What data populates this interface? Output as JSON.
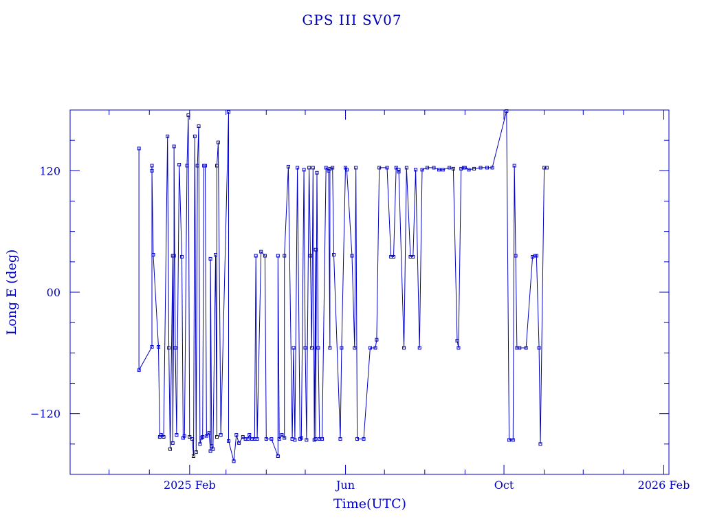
{
  "chart_data": {
    "type": "line",
    "title": "GPS III SV07",
    "xlabel": "Time(UTC)",
    "ylabel": "Long E (deg)",
    "xlim": [
      "2024-11-01",
      "2026-02-05"
    ],
    "ylim": [
      -180,
      180
    ],
    "y_ticks": [
      -120,
      0,
      120
    ],
    "y_tick_labels": [
      "−120",
      "00",
      "120"
    ],
    "x_ticks": [
      "2025-02-01",
      "2025-06-01",
      "2025-10-01",
      "2026-02-01"
    ],
    "x_tick_labels": [
      "2025 Feb",
      "Jun",
      "Oct",
      "2026 Feb"
    ],
    "grid": false,
    "color": "#0000c0",
    "series": [
      {
        "marker": "square",
        "points": [
          [
            "2024-12-24",
            142
          ],
          [
            "2024-12-24",
            -77
          ],
          [
            "2025-01-03",
            -54
          ],
          [
            "2025-01-03",
            125
          ],
          [
            "2025-01-03",
            120
          ],
          [
            "2025-01-04",
            37
          ],
          [
            "2025-01-08",
            -54
          ],
          [
            "2025-01-09",
            -143
          ],
          [
            "2025-01-10",
            -141
          ],
          [
            "2025-01-12",
            -143
          ],
          [
            "2025-01-15",
            154
          ],
          [
            "2025-01-16",
            -55
          ],
          [
            "2025-01-17",
            -155
          ],
          [
            "2025-01-19",
            36
          ],
          [
            "2025-01-19",
            -149
          ],
          [
            "2025-01-20",
            36
          ],
          [
            "2025-01-20",
            144
          ],
          [
            "2025-01-21",
            -55
          ],
          [
            "2025-01-22",
            -141
          ],
          [
            "2025-01-24",
            126
          ],
          [
            "2025-01-26",
            35
          ],
          [
            "2025-01-27",
            -144
          ],
          [
            "2025-01-28",
            -142
          ],
          [
            "2025-01-30",
            125
          ],
          [
            "2025-01-31",
            175
          ],
          [
            "2025-02-01",
            -143
          ],
          [
            "2025-02-03",
            -145
          ],
          [
            "2025-02-04",
            -162
          ],
          [
            "2025-02-05",
            154
          ],
          [
            "2025-02-06",
            -158
          ],
          [
            "2025-02-07",
            125
          ],
          [
            "2025-02-08",
            164
          ],
          [
            "2025-02-09",
            -150
          ],
          [
            "2025-02-10",
            -144
          ],
          [
            "2025-02-11",
            -143
          ],
          [
            "2025-02-12",
            125
          ],
          [
            "2025-02-13",
            125
          ],
          [
            "2025-02-14",
            -142
          ],
          [
            "2025-02-16",
            -139
          ],
          [
            "2025-02-17",
            -157
          ],
          [
            "2025-02-17",
            33
          ],
          [
            "2025-02-18",
            -152
          ],
          [
            "2025-02-19",
            -155
          ],
          [
            "2025-02-21",
            37
          ],
          [
            "2025-02-22",
            -143
          ],
          [
            "2025-02-22",
            125
          ],
          [
            "2025-02-23",
            148
          ],
          [
            "2025-02-25",
            -141
          ],
          [
            "2025-03-03",
            178
          ],
          [
            "2025-03-03",
            -147
          ],
          [
            "2025-03-07",
            -167
          ],
          [
            "2025-03-09",
            -141
          ],
          [
            "2025-03-11",
            -149
          ],
          [
            "2025-03-14",
            -143
          ],
          [
            "2025-03-16",
            -145
          ],
          [
            "2025-03-18",
            -145
          ],
          [
            "2025-03-19",
            -141
          ],
          [
            "2025-03-21",
            -145
          ],
          [
            "2025-03-23",
            -145
          ],
          [
            "2025-03-24",
            36
          ],
          [
            "2025-03-25",
            -145
          ],
          [
            "2025-03-28",
            40
          ],
          [
            "2025-03-31",
            36
          ],
          [
            "2025-04-01",
            -145
          ],
          [
            "2025-04-05",
            -145
          ],
          [
            "2025-04-10",
            -162
          ],
          [
            "2025-04-10",
            36
          ],
          [
            "2025-04-11",
            -145
          ],
          [
            "2025-04-13",
            -141
          ],
          [
            "2025-04-15",
            -144
          ],
          [
            "2025-04-15",
            36
          ],
          [
            "2025-04-18",
            124
          ],
          [
            "2025-04-21",
            -145
          ],
          [
            "2025-04-22",
            -55
          ],
          [
            "2025-04-23",
            -146
          ],
          [
            "2025-04-25",
            123
          ],
          [
            "2025-04-27",
            -145
          ],
          [
            "2025-04-28",
            -144
          ],
          [
            "2025-04-30",
            121
          ],
          [
            "2025-05-01",
            -55
          ],
          [
            "2025-05-02",
            -146
          ],
          [
            "2025-05-04",
            123
          ],
          [
            "2025-05-05",
            36
          ],
          [
            "2025-05-06",
            -55
          ],
          [
            "2025-05-07",
            123
          ],
          [
            "2025-05-08",
            -146
          ],
          [
            "2025-05-09",
            42
          ],
          [
            "2025-05-09",
            -145
          ],
          [
            "2025-05-10",
            118
          ],
          [
            "2025-05-11",
            -55
          ],
          [
            "2025-05-12",
            -145
          ],
          [
            "2025-05-14",
            -145
          ],
          [
            "2025-05-17",
            123
          ],
          [
            "2025-05-19",
            120
          ],
          [
            "2025-05-20",
            -55
          ],
          [
            "2025-05-20",
            122
          ],
          [
            "2025-05-22",
            123
          ],
          [
            "2025-05-23",
            37
          ],
          [
            "2025-05-28",
            -145
          ],
          [
            "2025-05-29",
            -55
          ],
          [
            "2025-06-01",
            123
          ],
          [
            "2025-06-02",
            121
          ],
          [
            "2025-06-06",
            36
          ],
          [
            "2025-06-08",
            -55
          ],
          [
            "2025-06-09",
            123
          ],
          [
            "2025-06-10",
            -145
          ],
          [
            "2025-06-15",
            -145
          ],
          [
            "2025-06-20",
            -55
          ],
          [
            "2025-06-24",
            -55
          ],
          [
            "2025-06-25",
            -47
          ],
          [
            "2025-06-27",
            123
          ],
          [
            "2025-07-03",
            123
          ],
          [
            "2025-07-06",
            35
          ],
          [
            "2025-07-08",
            35
          ],
          [
            "2025-07-10",
            123
          ],
          [
            "2025-07-12",
            119
          ],
          [
            "2025-07-12",
            121
          ],
          [
            "2025-07-16",
            -55
          ],
          [
            "2025-07-18",
            123
          ],
          [
            "2025-07-21",
            35
          ],
          [
            "2025-07-23",
            35
          ],
          [
            "2025-07-25",
            121
          ],
          [
            "2025-07-28",
            -55
          ],
          [
            "2025-07-30",
            121
          ],
          [
            "2025-08-03",
            123
          ],
          [
            "2025-08-08",
            123
          ],
          [
            "2025-08-12",
            121
          ],
          [
            "2025-08-15",
            121
          ],
          [
            "2025-08-20",
            123
          ],
          [
            "2025-08-23",
            122
          ],
          [
            "2025-08-26",
            -48
          ],
          [
            "2025-08-27",
            -55
          ],
          [
            "2025-08-29",
            122
          ],
          [
            "2025-08-31",
            123
          ],
          [
            "2025-09-01",
            123
          ],
          [
            "2025-09-04",
            121
          ],
          [
            "2025-09-08",
            122
          ],
          [
            "2025-09-13",
            123
          ],
          [
            "2025-09-18",
            123
          ],
          [
            "2025-09-22",
            123
          ],
          [
            "2025-10-03",
            179
          ],
          [
            "2025-10-05",
            -146
          ],
          [
            "2025-10-08",
            -146
          ],
          [
            "2025-10-09",
            125
          ],
          [
            "2025-10-10",
            36
          ],
          [
            "2025-10-11",
            -55
          ],
          [
            "2025-10-13",
            -55
          ],
          [
            "2025-10-18",
            -55
          ],
          [
            "2025-10-23",
            35
          ],
          [
            "2025-10-25",
            36
          ],
          [
            "2025-10-26",
            36
          ],
          [
            "2025-10-28",
            -55
          ],
          [
            "2025-10-29",
            -150
          ],
          [
            "2025-11-01",
            123
          ],
          [
            "2025-11-03",
            123
          ]
        ]
      }
    ]
  }
}
